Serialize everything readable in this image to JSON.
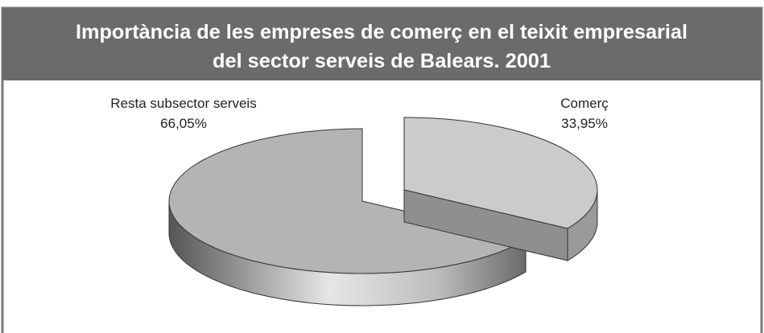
{
  "chart_data": {
    "type": "pie",
    "title": [
      "Importància de les empreses de comerç en el teixit empresarial",
      "del sector serveis de Balears. 2001"
    ],
    "categories": [
      "Resta subsector serveis",
      "Comerç"
    ],
    "values": [
      66.05,
      33.95
    ],
    "value_labels": [
      "66,05%",
      "33,95%"
    ],
    "colors": [
      "#b4b4b4",
      "#cbcbcb"
    ]
  }
}
